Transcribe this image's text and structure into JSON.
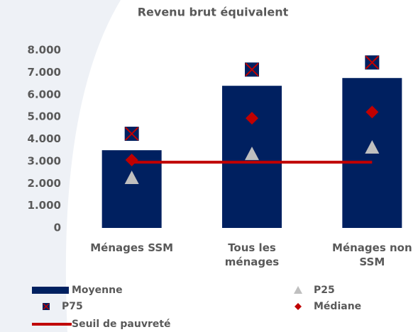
{
  "chart_data": {
    "type": "bar",
    "title": "Revenu brut équivalent",
    "categories": [
      "Ménages SSM",
      "Tous les ménages",
      "Ménages non SSM"
    ],
    "series": [
      {
        "name": "Moyenne",
        "color": "#002060",
        "marker": "bar",
        "values": [
          3500,
          6400,
          6750
        ]
      },
      {
        "name": "P25",
        "color": "#bfbfbf",
        "marker": "triangle",
        "values": [
          2230,
          3310,
          3600
        ]
      },
      {
        "name": "P75",
        "color": "#c00000",
        "marker": "square-x",
        "values": [
          4240,
          7130,
          7450
        ]
      },
      {
        "name": "Médiane",
        "color": "#c00000",
        "marker": "diamond",
        "values": [
          3060,
          4940,
          5220
        ]
      },
      {
        "name": "Seuil de pauvreté",
        "color": "#c00000",
        "marker": "line",
        "values": [
          2960,
          2960,
          2960
        ]
      }
    ],
    "ylim": [
      0,
      8000
    ],
    "yticks": [
      {
        "value": 0,
        "label": "0"
      },
      {
        "value": 1000,
        "label": "1.000"
      },
      {
        "value": 2000,
        "label": "2.000"
      },
      {
        "value": 3000,
        "label": "3.000"
      },
      {
        "value": 4000,
        "label": "4.000"
      },
      {
        "value": 5000,
        "label": "5.000"
      },
      {
        "value": 6000,
        "label": "6.000"
      },
      {
        "value": 7000,
        "label": "7.000"
      },
      {
        "value": 8000,
        "label": "8.000"
      }
    ],
    "grid": false
  }
}
